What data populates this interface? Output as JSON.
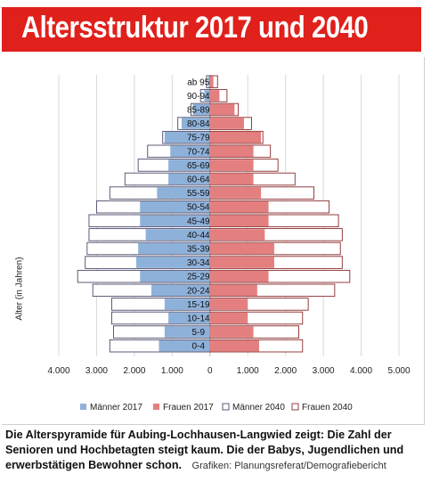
{
  "title": "Altersstruktur 2017 und 2040",
  "caption": {
    "bold": "Die Alterspyramide für Aubing-Lochhausen-Langwied zeigt: Die Zahl der Senioren und Hochbetagten steigt kaum. Die der Babys, Jugendlichen und erwerbstätigen Bewohner schon.",
    "source": "Grafiken: Planungsreferat/Demografiebericht"
  },
  "colors": {
    "title_bg": "#e0201b",
    "men_2017": "#8eb1da",
    "women_2017": "#e47f7f",
    "men_2040_stroke": "#4a4a6a",
    "women_2040_stroke": "#8a2a2a"
  },
  "chart_data": {
    "type": "bar",
    "orientation": "horizontal-pyramid",
    "ylabel": "Alter (in Jahren)",
    "xlabel": "",
    "xlim": [
      -4000,
      5000
    ],
    "xticks": [
      -4000,
      -3000,
      -2000,
      -1000,
      0,
      1000,
      2000,
      3000,
      4000,
      5000
    ],
    "xtick_labels": [
      "4.000",
      "3.000",
      "2.000",
      "1.000",
      "0",
      "1.000",
      "2.000",
      "3.000",
      "4.000",
      "5.000"
    ],
    "grid": "vertical",
    "legend_position": "bottom",
    "categories": [
      "ab 95",
      "90-94",
      "85-89",
      "80-84",
      "75-79",
      "70-74",
      "65-69",
      "60-64",
      "55-59",
      "50-54",
      "45-49",
      "40-44",
      "35-39",
      "30-34",
      "25-29",
      "20-24",
      "15-19",
      "10-14",
      "5-9",
      "0-4"
    ],
    "series": [
      {
        "name": "Männer 2017",
        "values": [
          40,
          150,
          450,
          750,
          1200,
          1050,
          1100,
          1100,
          1400,
          1850,
          1850,
          1700,
          1900,
          1950,
          1850,
          1550,
          1200,
          1100,
          1200,
          1350
        ]
      },
      {
        "name": "Frauen 2017",
        "values": [
          90,
          250,
          650,
          900,
          1350,
          1150,
          1150,
          1150,
          1350,
          1550,
          1550,
          1450,
          1700,
          1700,
          1550,
          1250,
          1000,
          1000,
          1150,
          1300
        ]
      },
      {
        "name": "Männer 2040",
        "values": [
          90,
          250,
          500,
          850,
          1250,
          1650,
          1900,
          2250,
          2650,
          3000,
          3200,
          3200,
          3250,
          3300,
          3500,
          3100,
          2600,
          2600,
          2550,
          2650
        ]
      },
      {
        "name": "Frauen 2040",
        "values": [
          200,
          450,
          750,
          1100,
          1400,
          1600,
          1800,
          2250,
          2750,
          3150,
          3400,
          3500,
          3450,
          3500,
          3700,
          3300,
          2600,
          2450,
          2350,
          2450
        ]
      }
    ]
  }
}
